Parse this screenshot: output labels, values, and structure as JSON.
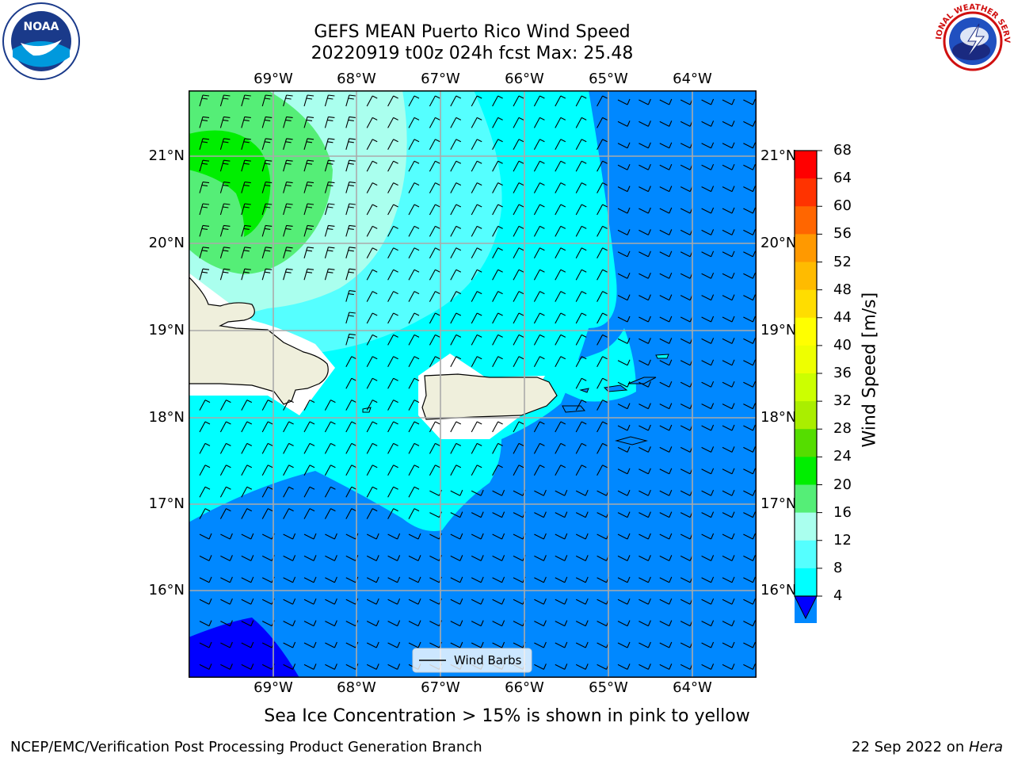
{
  "title": {
    "line1": "GEFS MEAN Puerto Rico Wind Speed",
    "line2": "20220919 t00z 024h fcst   Max: 25.48"
  },
  "map": {
    "lon_labels": [
      "69°W",
      "68°W",
      "67°W",
      "66°W",
      "65°W",
      "64°W"
    ],
    "lat_labels": [
      "21°N",
      "20°N",
      "19°N",
      "18°N",
      "17°N",
      "16°N"
    ],
    "legend_label": "Wind Barbs"
  },
  "colorbar": {
    "label": "Wind Speed [m/s]",
    "ticks": [
      "68",
      "64",
      "60",
      "56",
      "52",
      "48",
      "44",
      "40",
      "36",
      "32",
      "28",
      "24",
      "20",
      "16",
      "12",
      "8",
      "4"
    ],
    "colors": [
      "#ff0000",
      "#ff3300",
      "#ff6600",
      "#ff9900",
      "#ffbb00",
      "#ffdd00",
      "#ffff00",
      "#eeff00",
      "#ccff00",
      "#aaee00",
      "#55dd00",
      "#00ee00",
      "#55ee77",
      "#aaffee",
      "#55ffff",
      "#00ffff",
      "#0088ff"
    ],
    "under_color": "#0000ff"
  },
  "caption": "Sea Ice Concentration > 15% is shown in pink to yellow",
  "footer": {
    "left": "NCEP/EMC/Verification Post Processing Product Generation Branch",
    "right_prefix": "22 Sep 2022 on ",
    "right_host": "Hera"
  },
  "logos": {
    "noaa_text": "NOAA",
    "nws_text": "NATIONAL WEATHER SERVICE"
  }
}
